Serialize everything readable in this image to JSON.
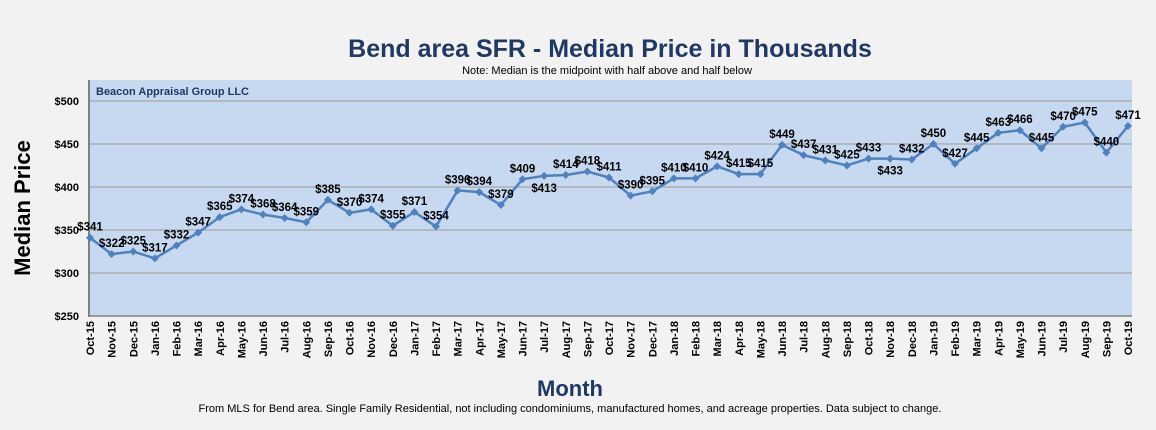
{
  "chart_data": {
    "type": "line",
    "title": "Bend area SFR - Median Price in Thousands",
    "subtitle": "Note: Median is the midpoint with half above and half below",
    "watermark": "Beacon Appraisal Group LLC",
    "xlabel": "Month",
    "ylabel": "Median Price",
    "footnote": "From MLS for Bend area.  Single Family Residential, not including condominiums, manufactured homes, and acreage properties.  Data subject to change.",
    "ylim": [
      250,
      500
    ],
    "yticks": [
      250,
      300,
      350,
      400,
      450,
      500
    ],
    "ytick_labels": [
      "$250",
      "$300",
      "$350",
      "$400",
      "$450",
      "$500"
    ],
    "grid": true,
    "colors": {
      "line": "#4f81bd",
      "plot_bg": "#c6d9f1",
      "title": "#1f3864",
      "grid": "#a6a6a6"
    },
    "categories": [
      "Oct-15",
      "Nov-15",
      "Dec-15",
      "Jan-16",
      "Feb-16",
      "Mar-16",
      "Apr-16",
      "May-16",
      "Jun-16",
      "Jul-16",
      "Aug-16",
      "Sep-16",
      "Oct-16",
      "Nov-16",
      "Dec-16",
      "Jan-17",
      "Feb-17",
      "Mar-17",
      "Apr-17",
      "May-17",
      "Jun-17",
      "Jul-17",
      "Aug-17",
      "Sep-17",
      "Oct-17",
      "Nov-17",
      "Dec-17",
      "Jan-18",
      "Feb-18",
      "Mar-18",
      "Apr-18",
      "May-18",
      "Jun-18",
      "Jul-18",
      "Aug-18",
      "Sep-18",
      "Oct-18",
      "Nov-18",
      "Dec-18",
      "Jan-19",
      "Feb-19",
      "Mar-19",
      "Apr-19",
      "May-19",
      "Jun-19",
      "Jul-19",
      "Aug-19",
      "Sep-19",
      "Oct-19"
    ],
    "values": [
      341,
      322,
      325,
      317,
      332,
      347,
      365,
      374,
      368,
      364,
      359,
      385,
      370,
      374,
      355,
      371,
      354,
      396,
      394,
      379,
      409,
      413,
      414,
      418,
      411,
      390,
      395,
      410,
      410,
      424,
      415,
      415,
      449,
      437,
      431,
      425,
      433,
      433,
      432,
      450,
      427,
      445,
      463,
      466,
      445,
      470,
      475,
      440,
      471
    ],
    "data_labels": [
      "$341",
      "$322",
      "$325",
      "$317",
      "$332",
      "$347",
      "$365",
      "$374",
      "$368",
      "$364",
      "$359",
      "$385",
      "$370",
      "$374",
      "$355",
      "$371",
      "$354",
      "$396",
      "$394",
      "$379",
      "$409",
      "$413",
      "$414",
      "$418",
      "$411",
      "$390",
      "$395",
      "$410",
      "$410",
      "$424",
      "$415",
      "$415",
      "$449",
      "$437",
      "$431",
      "$425",
      "$433",
      "$433",
      "$432",
      "$450",
      "$427",
      "$445",
      "$463",
      "$466",
      "$445",
      "$470",
      "$475",
      "$440",
      "$471"
    ]
  }
}
